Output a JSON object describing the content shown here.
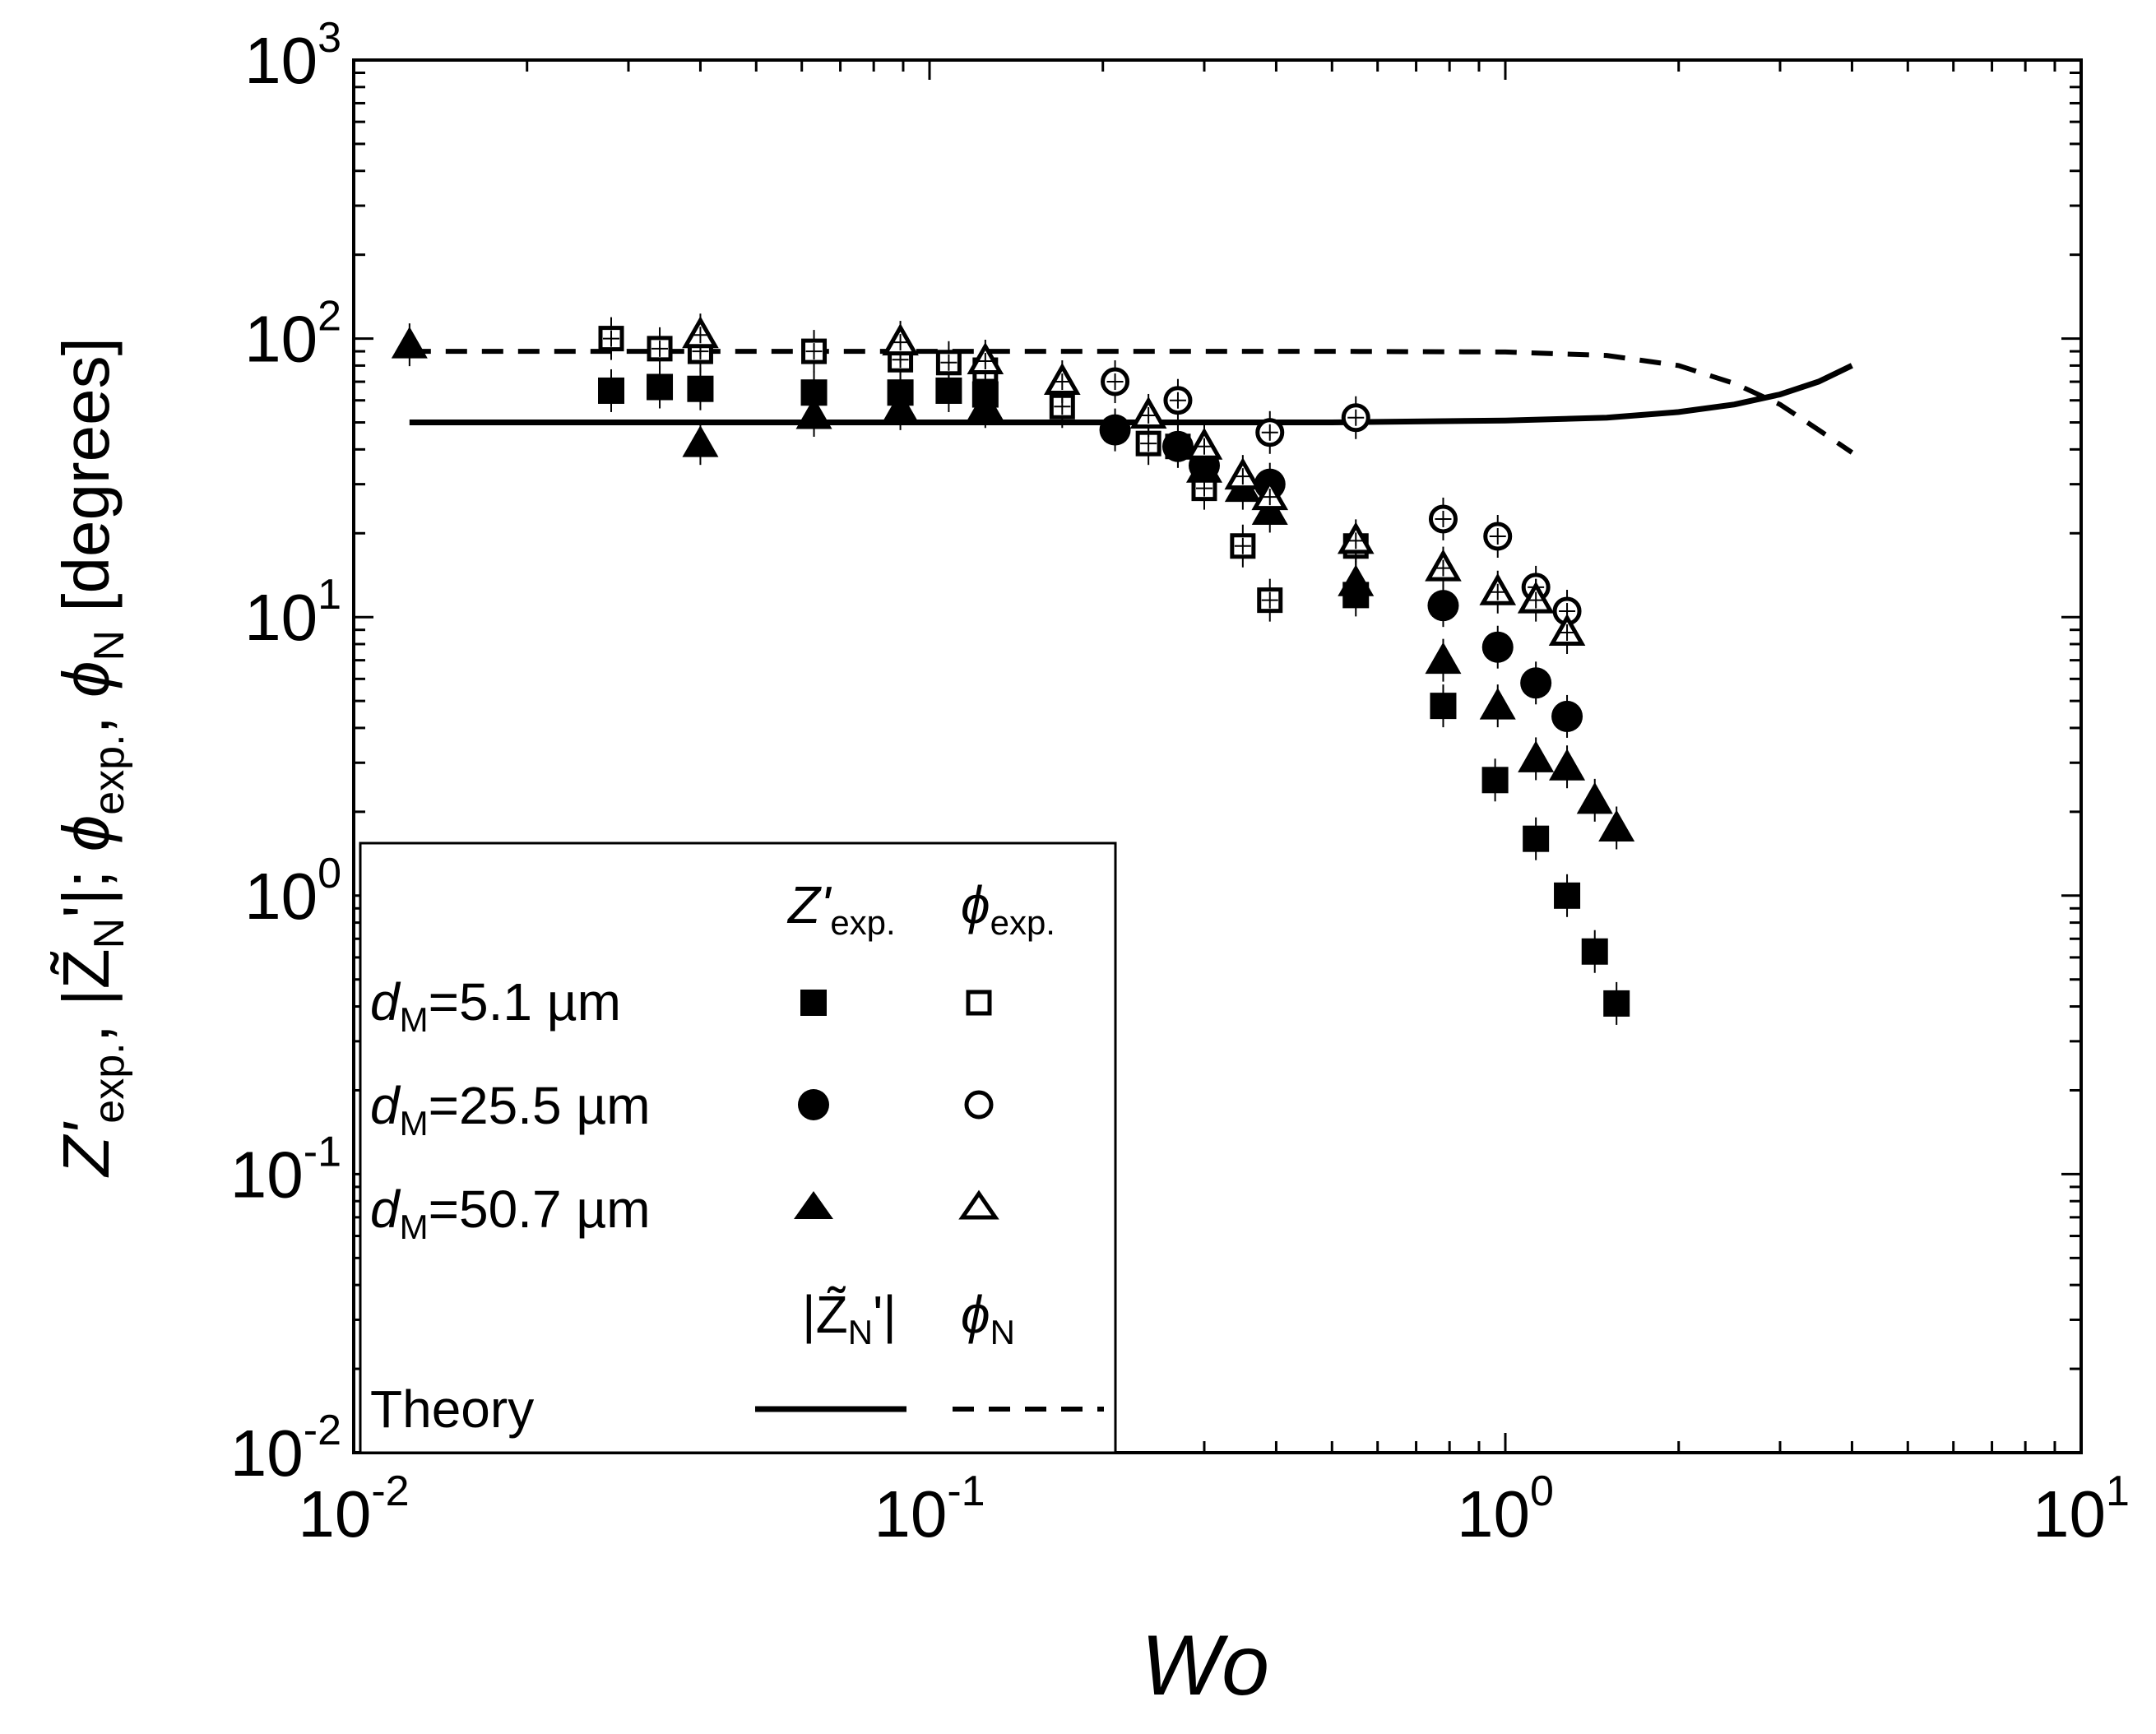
{
  "chart_data": {
    "type": "scatter",
    "xscale": "log",
    "yscale": "log",
    "xlim": [
      0.01,
      10
    ],
    "ylim": [
      0.01,
      1000
    ],
    "xlabel": "Wo",
    "ylabel": {
      "z": "Z'",
      "z_sub": "exp.",
      "sep1": ", |",
      "zn": "Z̃",
      "zn_sub": "N",
      "zn_tail": "'|; ",
      "phi": "ϕ",
      "phi_sub": "exp.",
      "sep2": ", ",
      "phin": "ϕ",
      "phin_sub": "N",
      "unit": " [degrees]"
    },
    "x_ticks": [
      {
        "base": "10",
        "exp": "-2",
        "value": 0.01
      },
      {
        "base": "10",
        "exp": "-1",
        "value": 0.1
      },
      {
        "base": "10",
        "exp": "0",
        "value": 1
      },
      {
        "base": "10",
        "exp": "1",
        "value": 10
      }
    ],
    "y_ticks": [
      {
        "base": "10",
        "exp": "-2",
        "value": 0.01
      },
      {
        "base": "10",
        "exp": "-1",
        "value": 0.1
      },
      {
        "base": "10",
        "exp": "0",
        "value": 1
      },
      {
        "base": "10",
        "exp": "1",
        "value": 10
      },
      {
        "base": "10",
        "exp": "2",
        "value": 100
      },
      {
        "base": "10",
        "exp": "3",
        "value": 1000
      }
    ],
    "series": [
      {
        "name": "Z'exp. dM=5.1 µm",
        "marker": "square",
        "filled": true,
        "points": [
          [
            0.028,
            65
          ],
          [
            0.034,
            67
          ],
          [
            0.04,
            66
          ],
          [
            0.063,
            64
          ],
          [
            0.089,
            64
          ],
          [
            0.108,
            65
          ],
          [
            0.125,
            63
          ],
          [
            0.55,
            12
          ],
          [
            0.78,
            4.8
          ],
          [
            0.96,
            2.6
          ],
          [
            1.13,
            1.6
          ],
          [
            1.28,
            1.0
          ],
          [
            1.43,
            0.63
          ],
          [
            1.56,
            0.41
          ]
        ]
      },
      {
        "name": "ϕexp. dM=5.1 µm",
        "marker": "square",
        "filled": false,
        "points": [
          [
            0.028,
            100
          ],
          [
            0.034,
            92
          ],
          [
            0.04,
            90
          ],
          [
            0.063,
            90
          ],
          [
            0.089,
            84
          ],
          [
            0.108,
            82
          ],
          [
            0.125,
            77
          ],
          [
            0.17,
            57
          ],
          [
            0.24,
            42
          ],
          [
            0.27,
            41
          ],
          [
            0.3,
            29
          ],
          [
            0.35,
            18
          ],
          [
            0.39,
            11.5
          ],
          [
            0.55,
            18
          ]
        ]
      },
      {
        "name": "Z'exp. dM=25.5 µm",
        "marker": "circle",
        "filled": true,
        "points": [
          [
            0.21,
            47
          ],
          [
            0.27,
            41
          ],
          [
            0.3,
            35
          ],
          [
            0.39,
            30
          ],
          [
            0.78,
            11
          ],
          [
            0.97,
            7.8
          ],
          [
            1.13,
            5.8
          ],
          [
            1.28,
            4.4
          ]
        ]
      },
      {
        "name": "ϕexp. dM=25.5 µm",
        "marker": "circle",
        "filled": false,
        "points": [
          [
            0.21,
            70
          ],
          [
            0.27,
            60
          ],
          [
            0.39,
            46
          ],
          [
            0.55,
            52
          ],
          [
            0.78,
            22.5
          ],
          [
            0.97,
            19.5
          ],
          [
            1.13,
            12.8
          ],
          [
            1.28,
            10.5
          ]
        ]
      },
      {
        "name": "Z'exp. dM=50.7 µm",
        "marker": "triangle",
        "filled": true,
        "points": [
          [
            0.0125,
            95
          ],
          [
            0.04,
            42
          ],
          [
            0.063,
            53
          ],
          [
            0.089,
            56
          ],
          [
            0.125,
            57
          ],
          [
            0.3,
            34
          ],
          [
            0.35,
            29
          ],
          [
            0.39,
            24
          ],
          [
            0.55,
            13.3
          ],
          [
            0.78,
            7
          ],
          [
            0.97,
            4.8
          ],
          [
            1.13,
            3.1
          ],
          [
            1.28,
            2.9
          ],
          [
            1.43,
            2.2
          ],
          [
            1.56,
            1.75
          ]
        ]
      },
      {
        "name": "ϕexp. dM=50.7 µm",
        "marker": "triangle",
        "filled": false,
        "points": [
          [
            0.04,
            103
          ],
          [
            0.089,
            97
          ],
          [
            0.125,
            83
          ],
          [
            0.17,
            70
          ],
          [
            0.24,
            53
          ],
          [
            0.3,
            41
          ],
          [
            0.35,
            32
          ],
          [
            0.39,
            27
          ],
          [
            0.55,
            18.8
          ],
          [
            0.78,
            15
          ],
          [
            0.97,
            12.3
          ],
          [
            1.13,
            11.5
          ],
          [
            1.28,
            8.8
          ]
        ]
      }
    ],
    "theory": [
      {
        "name": "|Z̃N'|",
        "style": "solid",
        "points": [
          [
            0.0125,
            50
          ],
          [
            0.1,
            50
          ],
          [
            0.5,
            50
          ],
          [
            1,
            50.8
          ],
          [
            1.5,
            52
          ],
          [
            2,
            54.5
          ],
          [
            2.5,
            58
          ],
          [
            3,
            63
          ],
          [
            3.5,
            70
          ],
          [
            4,
            80
          ]
        ]
      },
      {
        "name": "ϕN",
        "style": "dashed",
        "points": [
          [
            0.0125,
            90
          ],
          [
            0.1,
            90
          ],
          [
            0.5,
            90
          ],
          [
            1,
            89.5
          ],
          [
            1.5,
            87
          ],
          [
            2,
            80
          ],
          [
            2.5,
            69
          ],
          [
            3,
            58
          ],
          [
            3.5,
            47
          ],
          [
            4,
            39
          ]
        ]
      }
    ],
    "legend": {
      "placement": "lower-left",
      "col_z": "Z'",
      "col_z_sub": "exp.",
      "col_phi": "ϕ",
      "col_phi_sub": "exp.",
      "rows": [
        {
          "d": "d",
          "d_sub": "M",
          "value": "=5.1 µm"
        },
        {
          "d": "d",
          "d_sub": "M",
          "value": "=25.5 µm"
        },
        {
          "d": "d",
          "d_sub": "M",
          "value": "=50.7 µm"
        }
      ],
      "theory_col_z": "|Z̃",
      "theory_col_z_sub": "N",
      "theory_col_z_tail": "'|",
      "theory_col_phi": "ϕ",
      "theory_col_phi_sub": "N",
      "theory_label": "Theory"
    }
  }
}
